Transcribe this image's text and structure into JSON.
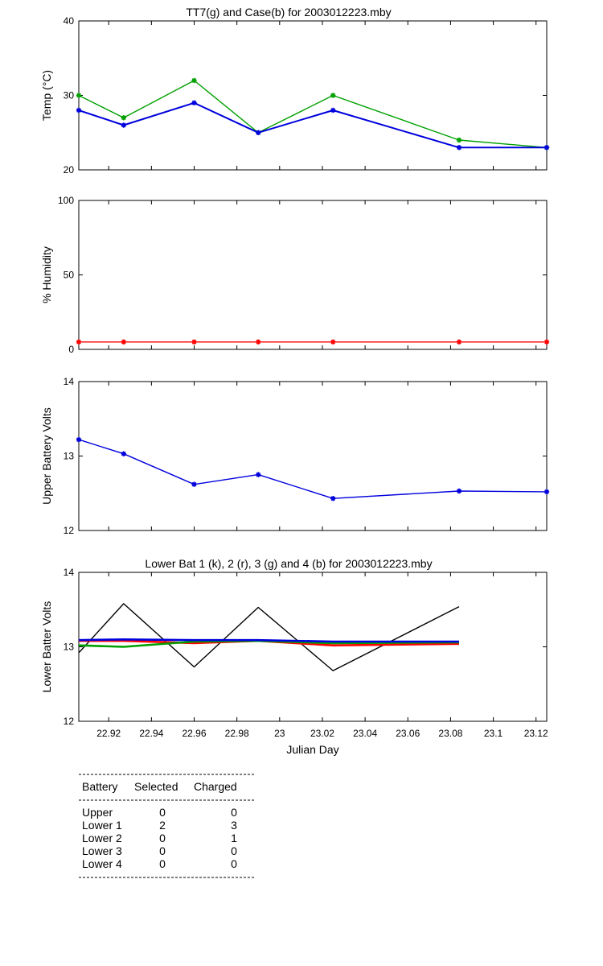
{
  "chart_data": [
    {
      "type": "line",
      "title": "TT7(g) and Case(b) for 2003012223.mby",
      "ylabel": "Temp  (°C)",
      "xlim": [
        22.906,
        23.125
      ],
      "ylim": [
        20,
        40
      ],
      "yticks": [
        "20",
        "30",
        "40"
      ],
      "series": [
        {
          "color": "#00a000",
          "marker": "*",
          "x": [
            22.906,
            22.927,
            22.96,
            22.99,
            23.025,
            23.084,
            23.125
          ],
          "y": [
            30,
            27,
            32,
            25,
            30,
            24,
            23
          ]
        },
        {
          "color": "#0000dd",
          "marker": "*",
          "x": [
            22.906,
            22.927,
            22.96,
            22.99,
            23.025,
            23.084,
            23.125
          ],
          "y": [
            28,
            26,
            29,
            25,
            28,
            23,
            23
          ]
        }
      ]
    },
    {
      "type": "line",
      "title": "",
      "ylabel": "% Humidity",
      "xlim": [
        22.906,
        23.125
      ],
      "ylim": [
        0,
        100
      ],
      "yticks": [
        "0",
        "50",
        "100"
      ],
      "series": [
        {
          "color": "#ff0000",
          "marker": "*",
          "x": [
            22.906,
            22.927,
            22.96,
            22.99,
            23.025,
            23.084,
            23.125
          ],
          "y": [
            5,
            5,
            5,
            5,
            5,
            5,
            5
          ]
        }
      ]
    },
    {
      "type": "line",
      "title": "",
      "ylabel": "Upper Battery Volts",
      "xlim": [
        22.906,
        23.125
      ],
      "ylim": [
        12,
        14
      ],
      "yticks": [
        "12",
        "13",
        "14"
      ],
      "series": [
        {
          "color": "#0000dd",
          "marker": "*",
          "x": [
            22.906,
            22.927,
            22.96,
            22.99,
            23.025,
            23.084,
            23.125
          ],
          "y": [
            13.22,
            13.03,
            12.62,
            12.75,
            12.43,
            12.53,
            12.52
          ]
        }
      ]
    },
    {
      "type": "line",
      "title": "Lower Bat 1 (k), 2 (r), 3 (g) and 4 (b) for 2003012223.mby",
      "ylabel": "Lower Batter Volts",
      "xlabel": "Julian Day",
      "xlim": [
        22.906,
        23.125
      ],
      "ylim": [
        12,
        14
      ],
      "yticks": [
        "12",
        "13",
        "14"
      ],
      "xticks": [
        "22.92",
        "22.94",
        "22.96",
        "22.98",
        "23",
        "23.02",
        "23.04",
        "23.06",
        "23.08",
        "23.1",
        "23.12"
      ],
      "xtick_values": [
        22.92,
        22.94,
        22.96,
        22.98,
        23.0,
        23.02,
        23.04,
        23.06,
        23.08,
        23.1,
        23.12
      ],
      "series": [
        {
          "color": "#000000",
          "x": [
            22.906,
            22.927,
            22.96,
            22.99,
            23.025,
            23.084
          ],
          "y": [
            12.92,
            13.58,
            12.73,
            13.53,
            12.68,
            13.54
          ]
        },
        {
          "color": "#ff0000",
          "x": [
            22.906,
            22.927,
            22.96,
            22.99,
            23.025,
            23.084
          ],
          "y": [
            13.08,
            13.08,
            13.05,
            13.08,
            13.02,
            13.04
          ]
        },
        {
          "color": "#00a000",
          "x": [
            22.906,
            22.927,
            22.96,
            22.99,
            23.025,
            23.084
          ],
          "y": [
            13.02,
            13.0,
            13.07,
            13.08,
            13.05,
            13.06
          ]
        },
        {
          "color": "#0000dd",
          "x": [
            22.906,
            22.927,
            22.96,
            22.99,
            23.025,
            23.084
          ],
          "y": [
            13.09,
            13.1,
            13.09,
            13.09,
            13.07,
            13.07
          ]
        }
      ]
    }
  ],
  "battery_table": {
    "headers": [
      "Battery",
      "Selected",
      "Charged"
    ],
    "rows": [
      {
        "battery": "Upper",
        "selected": "0",
        "charged": "0"
      },
      {
        "battery": "Lower 1",
        "selected": "2",
        "charged": "3"
      },
      {
        "battery": "Lower 2",
        "selected": "0",
        "charged": "1"
      },
      {
        "battery": "Lower 3",
        "selected": "0",
        "charged": "0"
      },
      {
        "battery": "Lower 4",
        "selected": "0",
        "charged": "0"
      }
    ]
  }
}
